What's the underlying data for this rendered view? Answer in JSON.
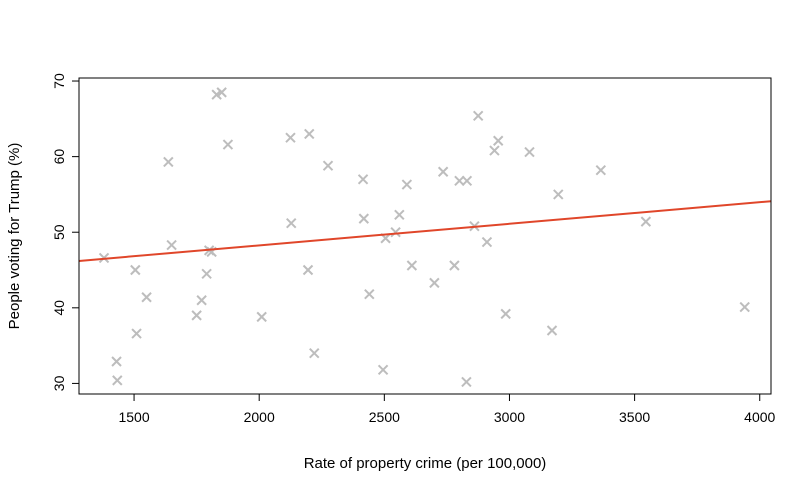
{
  "chart_data": {
    "type": "scatter",
    "title": "",
    "xlabel": "Rate of property crime (per 100,000)",
    "ylabel": "People voting for Trump (%)",
    "xlim": [
      1280,
      4045
    ],
    "ylim": [
      28.6,
      70.4
    ],
    "xticks": [
      1500,
      2000,
      2500,
      3000,
      3500,
      4000
    ],
    "yticks": [
      30,
      40,
      50,
      60,
      70
    ],
    "grid": false,
    "marker": "x",
    "marker_color": "#bdbdbd",
    "line_color": "#e0462a",
    "points": [
      [
        1380,
        46.6
      ],
      [
        1430,
        32.9
      ],
      [
        1433,
        30.4
      ],
      [
        1505,
        45.0
      ],
      [
        1510,
        36.6
      ],
      [
        1550,
        41.4
      ],
      [
        1637,
        59.3
      ],
      [
        1650,
        48.3
      ],
      [
        1750,
        39.0
      ],
      [
        1770,
        41.0
      ],
      [
        1790,
        44.5
      ],
      [
        1800,
        47.6
      ],
      [
        1810,
        47.4
      ],
      [
        1830,
        68.2
      ],
      [
        1850,
        68.5
      ],
      [
        1875,
        61.6
      ],
      [
        2010,
        38.8
      ],
      [
        2125,
        62.5
      ],
      [
        2128,
        51.2
      ],
      [
        2195,
        45.0
      ],
      [
        2200,
        63.0
      ],
      [
        2220,
        34.0
      ],
      [
        2275,
        58.8
      ],
      [
        2415,
        57.0
      ],
      [
        2418,
        51.8
      ],
      [
        2440,
        41.8
      ],
      [
        2495,
        31.8
      ],
      [
        2505,
        49.2
      ],
      [
        2545,
        50.0
      ],
      [
        2560,
        52.3
      ],
      [
        2590,
        56.3
      ],
      [
        2610,
        45.6
      ],
      [
        2700,
        43.3
      ],
      [
        2735,
        58.0
      ],
      [
        2780,
        45.6
      ],
      [
        2800,
        56.8
      ],
      [
        2828,
        30.2
      ],
      [
        2830,
        56.8
      ],
      [
        2860,
        50.8
      ],
      [
        2875,
        65.4
      ],
      [
        2910,
        48.7
      ],
      [
        2940,
        60.8
      ],
      [
        2955,
        62.1
      ],
      [
        2985,
        39.2
      ],
      [
        3080,
        60.6
      ],
      [
        3170,
        37.0
      ],
      [
        3195,
        55.0
      ],
      [
        3365,
        58.2
      ],
      [
        3545,
        51.4
      ],
      [
        3940,
        40.1
      ]
    ],
    "trend_line": {
      "x": [
        1280,
        4045
      ],
      "y": [
        46.2,
        54.1
      ]
    }
  }
}
